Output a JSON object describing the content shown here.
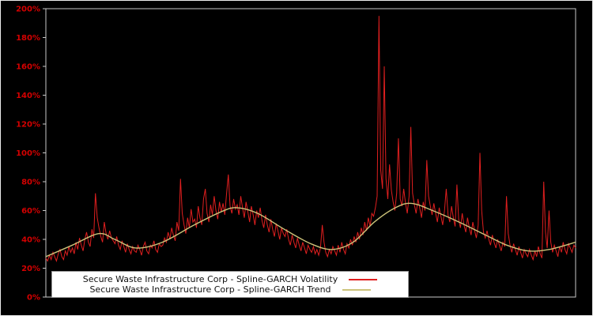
{
  "window": {
    "background": "#000000",
    "outer_border": "#ececec"
  },
  "chart_data": {
    "type": "line",
    "title": "",
    "xlabel": "",
    "ylabel": "",
    "grid": false,
    "ylim": [
      0,
      200
    ],
    "y_tick_values": [
      0,
      20,
      40,
      60,
      80,
      100,
      120,
      140,
      160,
      180,
      200
    ],
    "y_tick_labels": [
      "0%",
      "20%",
      "40%",
      "60%",
      "80%",
      "100%",
      "120%",
      "140%",
      "160%",
      "180%",
      "200%"
    ],
    "x_tick_labels": [],
    "axis_label_color": "#d40000",
    "frame_color": "#c8c8c8",
    "legend_position": "bottom-center",
    "legend_background": "#ffffff",
    "series": [
      {
        "name": "Secure Waste Infrastructure Corp - Spline-GARCH Volatility",
        "style": "noisy",
        "color": "#e01f1f",
        "values": [
          27,
          25,
          29,
          26,
          31,
          28,
          25,
          30,
          33,
          28,
          26,
          32,
          29,
          35,
          31,
          34,
          30,
          38,
          33,
          41,
          36,
          32,
          40,
          45,
          38,
          35,
          47,
          41,
          72,
          55,
          48,
          42,
          38,
          52,
          44,
          40,
          46,
          41,
          39,
          37,
          42,
          36,
          33,
          39,
          35,
          31,
          37,
          33,
          30,
          35,
          32,
          31,
          36,
          33,
          29,
          35,
          38,
          32,
          30,
          36,
          34,
          39,
          33,
          31,
          37,
          35,
          36,
          41,
          38,
          45,
          40,
          48,
          43,
          39,
          52,
          46,
          82,
          58,
          50,
          44,
          55,
          48,
          61,
          52,
          54,
          48,
          63,
          55,
          50,
          68,
          75,
          58,
          52,
          64,
          57,
          70,
          60,
          54,
          66,
          59,
          65,
          57,
          72,
          85,
          63,
          58,
          68,
          61,
          64,
          57,
          70,
          62,
          55,
          66,
          59,
          52,
          63,
          57,
          50,
          60,
          55,
          62,
          53,
          48,
          57,
          50,
          45,
          54,
          47,
          42,
          51,
          46,
          40,
          48,
          44,
          42,
          47,
          40,
          36,
          43,
          38,
          34,
          41,
          36,
          32,
          38,
          34,
          30,
          36,
          33,
          31,
          35,
          30,
          33,
          29,
          34,
          50,
          38,
          31,
          28,
          33,
          30,
          35,
          32,
          29,
          36,
          31,
          38,
          33,
          30,
          37,
          34,
          40,
          36,
          42,
          38,
          45,
          40,
          48,
          43,
          52,
          46,
          55,
          49,
          58,
          56,
          62,
          70,
          195,
          88,
          75,
          160,
          82,
          68,
          92,
          74,
          66,
          60,
          72,
          110,
          68,
          63,
          75,
          65,
          58,
          70,
          118,
          72,
          64,
          58,
          68,
          62,
          55,
          66,
          60,
          95,
          70,
          63,
          57,
          65,
          58,
          52,
          62,
          56,
          50,
          60,
          75,
          57,
          52,
          63,
          55,
          49,
          78,
          54,
          48,
          58,
          50,
          45,
          55,
          48,
          43,
          52,
          46,
          41,
          50,
          100,
          60,
          45,
          41,
          46,
          40,
          36,
          43,
          38,
          34,
          40,
          36,
          32,
          38,
          35,
          70,
          44,
          36,
          31,
          37,
          33,
          29,
          35,
          31,
          27,
          33,
          30,
          28,
          33,
          29,
          26,
          32,
          28,
          35,
          30,
          27,
          80,
          45,
          34,
          60,
          38,
          31,
          36,
          32,
          28,
          35,
          31,
          38,
          33,
          30,
          37,
          34,
          31,
          36,
          34
        ]
      },
      {
        "name": "Secure Waste Infrastructure Corp - Spline-GARCH Trend",
        "style": "smooth",
        "color": "#ccc37a",
        "points": [
          [
            0.0,
            28
          ],
          [
            0.05,
            36
          ],
          [
            0.1,
            44
          ],
          [
            0.13,
            40
          ],
          [
            0.17,
            34
          ],
          [
            0.22,
            38
          ],
          [
            0.28,
            50
          ],
          [
            0.33,
            59
          ],
          [
            0.36,
            62
          ],
          [
            0.4,
            58
          ],
          [
            0.45,
            47
          ],
          [
            0.5,
            37
          ],
          [
            0.54,
            33
          ],
          [
            0.58,
            38
          ],
          [
            0.62,
            52
          ],
          [
            0.66,
            62
          ],
          [
            0.69,
            65
          ],
          [
            0.73,
            60
          ],
          [
            0.78,
            52
          ],
          [
            0.83,
            43
          ],
          [
            0.87,
            36
          ],
          [
            0.91,
            32
          ],
          [
            0.95,
            33
          ],
          [
            1.0,
            38
          ]
        ]
      }
    ]
  }
}
